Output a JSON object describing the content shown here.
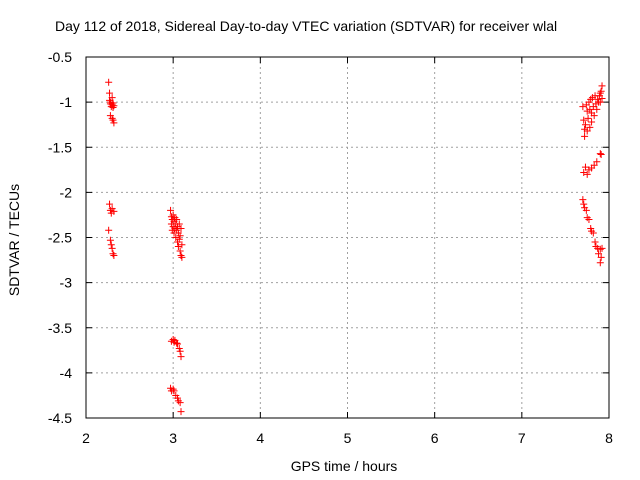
{
  "chart_data": {
    "type": "scatter",
    "title": "Day 112 of 2018, Sidereal Day-to-day VTEC variation (SDTVAR) for receiver wlal",
    "xlabel": "GPS time / hours",
    "ylabel": "SDTVAR / TECUs",
    "xlim": [
      2,
      8
    ],
    "ylim": [
      -4.5,
      -0.5
    ],
    "xticks": [
      "2",
      "3",
      "4",
      "5",
      "6",
      "7",
      "8"
    ],
    "yticks": [
      "-0.5",
      "-1",
      "-1.5",
      "-2",
      "-2.5",
      "-3",
      "-3.5",
      "-4",
      "-4.5"
    ],
    "grid": true,
    "marker": "+",
    "color": "#ff0000",
    "series": [
      {
        "points": [
          [
            2.26,
            -0.78
          ],
          [
            2.27,
            -0.9
          ],
          [
            2.27,
            -0.98
          ],
          [
            2.28,
            -1.0
          ],
          [
            2.28,
            -1.02
          ],
          [
            2.29,
            -1.05
          ],
          [
            2.3,
            -0.95
          ],
          [
            2.3,
            -1.03
          ],
          [
            2.31,
            -1.06
          ],
          [
            2.31,
            -1.01
          ],
          [
            2.32,
            -1.04
          ],
          [
            2.28,
            -1.15
          ],
          [
            2.3,
            -1.18
          ],
          [
            2.31,
            -1.2
          ],
          [
            2.32,
            -1.23
          ],
          [
            2.27,
            -2.13
          ],
          [
            2.28,
            -2.2
          ],
          [
            2.29,
            -2.23
          ],
          [
            2.3,
            -2.18
          ],
          [
            2.32,
            -2.21
          ],
          [
            2.26,
            -2.42
          ],
          [
            2.28,
            -2.53
          ],
          [
            2.29,
            -2.58
          ],
          [
            2.3,
            -2.62
          ],
          [
            2.31,
            -2.68
          ],
          [
            2.32,
            -2.7
          ],
          [
            2.97,
            -2.2
          ],
          [
            2.98,
            -2.27
          ],
          [
            2.98,
            -2.35
          ],
          [
            2.99,
            -2.3
          ],
          [
            2.99,
            -2.42
          ],
          [
            3.0,
            -2.25
          ],
          [
            3.0,
            -2.38
          ],
          [
            3.01,
            -2.32
          ],
          [
            3.01,
            -2.45
          ],
          [
            3.02,
            -2.28
          ],
          [
            3.02,
            -2.4
          ],
          [
            3.03,
            -2.5
          ],
          [
            3.03,
            -2.35
          ],
          [
            3.04,
            -2.3
          ],
          [
            3.04,
            -2.42
          ],
          [
            3.05,
            -2.55
          ],
          [
            3.05,
            -2.38
          ],
          [
            3.06,
            -2.6
          ],
          [
            3.06,
            -2.45
          ],
          [
            3.07,
            -2.35
          ],
          [
            3.07,
            -2.52
          ],
          [
            3.08,
            -2.65
          ],
          [
            3.08,
            -2.48
          ],
          [
            3.09,
            -2.7
          ],
          [
            3.09,
            -2.4
          ],
          [
            3.1,
            -2.58
          ],
          [
            3.1,
            -2.72
          ],
          [
            2.98,
            -3.65
          ],
          [
            3.0,
            -3.63
          ],
          [
            3.01,
            -3.66
          ],
          [
            3.02,
            -3.64
          ],
          [
            3.04,
            -3.67
          ],
          [
            3.05,
            -3.68
          ],
          [
            3.07,
            -3.73
          ],
          [
            3.08,
            -3.76
          ],
          [
            3.09,
            -3.82
          ],
          [
            2.97,
            -4.17
          ],
          [
            2.98,
            -4.2
          ],
          [
            3.0,
            -4.18
          ],
          [
            3.01,
            -4.2
          ],
          [
            3.03,
            -4.25
          ],
          [
            3.05,
            -4.28
          ],
          [
            3.06,
            -4.31
          ],
          [
            3.08,
            -4.33
          ],
          [
            3.09,
            -4.43
          ],
          [
            7.7,
            -1.05
          ],
          [
            7.71,
            -1.2
          ],
          [
            7.72,
            -1.3
          ],
          [
            7.72,
            -1.38
          ],
          [
            7.73,
            -1.25
          ],
          [
            7.74,
            -1.03
          ],
          [
            7.75,
            -1.1
          ],
          [
            7.75,
            -1.32
          ],
          [
            7.76,
            -1.18
          ],
          [
            7.77,
            -1.0
          ],
          [
            7.78,
            -1.08
          ],
          [
            7.78,
            -1.28
          ],
          [
            7.79,
            -0.97
          ],
          [
            7.8,
            -1.12
          ],
          [
            7.8,
            -1.22
          ],
          [
            7.81,
            -0.95
          ],
          [
            7.82,
            -1.05
          ],
          [
            7.83,
            -1.15
          ],
          [
            7.84,
            -0.93
          ],
          [
            7.85,
            -1.02
          ],
          [
            7.86,
            -1.08
          ],
          [
            7.87,
            -0.97
          ],
          [
            7.88,
            -1.0
          ],
          [
            7.89,
            -0.93
          ],
          [
            7.9,
            -1.0
          ],
          [
            7.9,
            -0.9
          ],
          [
            7.91,
            -0.88
          ],
          [
            7.92,
            -0.96
          ],
          [
            7.92,
            -0.82
          ],
          [
            7.71,
            -1.78
          ],
          [
            7.73,
            -1.72
          ],
          [
            7.75,
            -1.8
          ],
          [
            7.77,
            -1.75
          ],
          [
            7.8,
            -1.73
          ],
          [
            7.83,
            -1.7
          ],
          [
            7.86,
            -1.66
          ],
          [
            7.9,
            -1.57
          ],
          [
            7.91,
            -1.58
          ],
          [
            7.7,
            -2.08
          ],
          [
            7.71,
            -2.13
          ],
          [
            7.72,
            -2.17
          ],
          [
            7.74,
            -2.2
          ],
          [
            7.75,
            -2.28
          ],
          [
            7.77,
            -2.3
          ],
          [
            7.79,
            -2.4
          ],
          [
            7.8,
            -2.43
          ],
          [
            7.82,
            -2.45
          ],
          [
            7.84,
            -2.55
          ],
          [
            7.85,
            -2.6
          ],
          [
            7.87,
            -2.62
          ],
          [
            7.88,
            -2.68
          ],
          [
            7.9,
            -2.63
          ],
          [
            7.9,
            -2.78
          ],
          [
            7.91,
            -2.72
          ],
          [
            7.92,
            -2.62
          ]
        ]
      }
    ]
  }
}
